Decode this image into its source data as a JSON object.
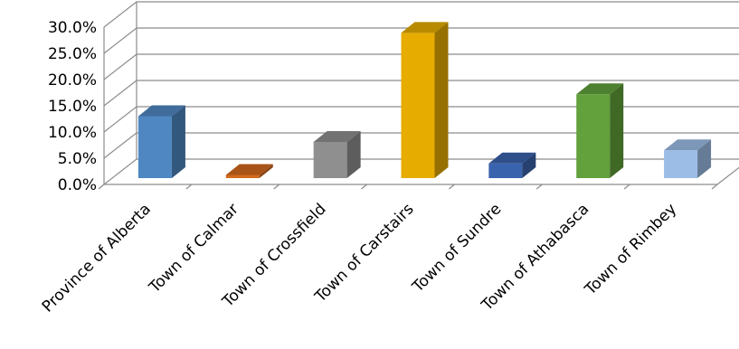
{
  "chart_data": {
    "type": "bar",
    "title": "",
    "xlabel": "",
    "ylabel": "",
    "categories": [
      "Province of Alberta",
      "Town of Calmar",
      "Town of Crossfield",
      "Town of Carstairs",
      "Town of Sundre",
      "Town of Athabasca",
      "Town of Rimbey"
    ],
    "values": [
      0.118,
      0.006,
      0.069,
      0.277,
      0.028,
      0.16,
      0.053
    ],
    "ylim": [
      0,
      0.3
    ],
    "yticks": [
      0,
      0.05,
      0.1,
      0.15,
      0.2,
      0.25,
      0.3
    ],
    "ytick_labels": [
      "0.0%",
      "5.0%",
      "10.0%",
      "15.0%",
      "20.0%",
      "25.0%",
      "30.0%"
    ],
    "colors": [
      "#4f87c2",
      "#d2691e",
      "#8f8f8f",
      "#e6ac00",
      "#3a63ad",
      "#62a13b",
      "#9cbde6"
    ],
    "grid": true,
    "legend": "none",
    "style": "3d-columns"
  }
}
